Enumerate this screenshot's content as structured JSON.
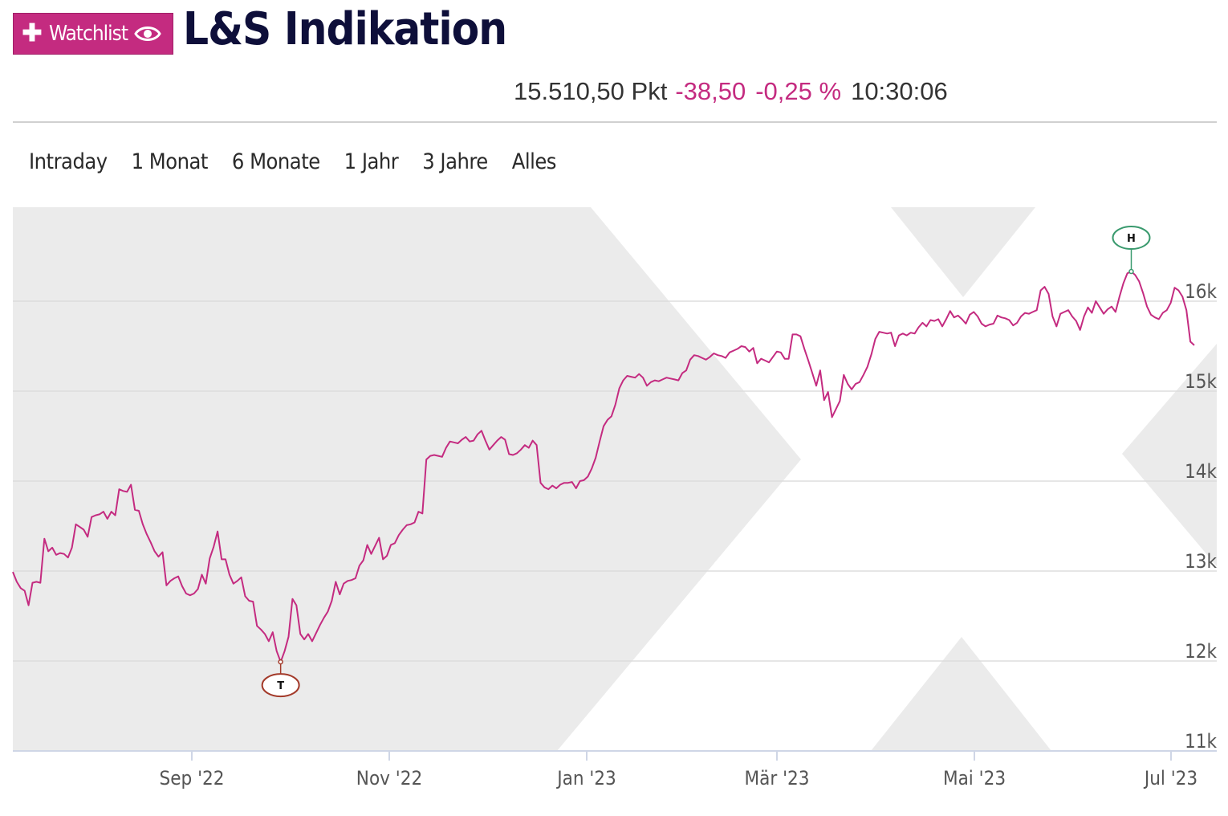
{
  "header": {
    "watchlist_label": "Watchlist",
    "title": "L&S Indikation"
  },
  "quote": {
    "value": "15.510,50 Pkt",
    "change": "-38,50",
    "change_pct": "-0,25 %",
    "time": "10:30:06"
  },
  "tabs": [
    "Intraday",
    "1 Monat",
    "6 Monate",
    "1 Jahr",
    "3 Jahre",
    "Alles"
  ],
  "colors": {
    "accent": "#c42b80",
    "title": "#0e0f3a",
    "high_marker": "#3a9a6e",
    "low_marker": "#a33a2a",
    "background_shape": "#ebebeb",
    "grid": "#dddddd"
  },
  "icons": [
    "plus-icon",
    "eye-icon"
  ],
  "chart_data": {
    "type": "line",
    "x_tick_labels": [
      "Sep '22",
      "Nov '22",
      "Jan '23",
      "Mär '23",
      "Mai '23",
      "Jul '23"
    ],
    "y_tick_labels": [
      "11k",
      "12k",
      "13k",
      "14k",
      "15k",
      "16k"
    ],
    "ylim": [
      11000,
      17000
    ],
    "grid": true,
    "markers": [
      {
        "label": "H",
        "value": 16330
      },
      {
        "label": "T",
        "value": 11980
      }
    ],
    "series": [
      {
        "values": [
          12990,
          12880,
          12810,
          12780,
          12620,
          12870,
          12880,
          12870,
          13360,
          13220,
          13260,
          13180,
          13200,
          13190,
          13150,
          13260,
          13520,
          13490,
          13460,
          13380,
          13600,
          13620,
          13630,
          13660,
          13580,
          13660,
          13620,
          13910,
          13890,
          13880,
          13960,
          13680,
          13670,
          13520,
          13410,
          13320,
          13220,
          13160,
          13210,
          12840,
          12890,
          12920,
          12940,
          12830,
          12750,
          12730,
          12750,
          12800,
          12960,
          12860,
          13140,
          13270,
          13440,
          13130,
          13130,
          12960,
          12860,
          12890,
          12930,
          12720,
          12670,
          12660,
          12390,
          12350,
          12300,
          12220,
          12320,
          12110,
          11990,
          12110,
          12270,
          12690,
          12620,
          12300,
          12240,
          12300,
          12220,
          12310,
          12400,
          12480,
          12550,
          12670,
          12880,
          12740,
          12860,
          12890,
          12900,
          12920,
          13060,
          13120,
          13290,
          13190,
          13280,
          13370,
          13130,
          13170,
          13290,
          13310,
          13400,
          13460,
          13510,
          13520,
          13540,
          13660,
          13640,
          14240,
          14280,
          14290,
          14280,
          14270,
          14370,
          14440,
          14430,
          14420,
          14460,
          14490,
          14440,
          14450,
          14520,
          14560,
          14450,
          14350,
          14400,
          14450,
          14490,
          14460,
          14300,
          14290,
          14310,
          14350,
          14400,
          14370,
          14450,
          14400,
          13980,
          13930,
          13910,
          13950,
          13920,
          13960,
          13980,
          13980,
          13990,
          13920,
          14000,
          14010,
          14050,
          14140,
          14260,
          14440,
          14610,
          14680,
          14720,
          14850,
          15030,
          15120,
          15170,
          15160,
          15150,
          15190,
          15150,
          15060,
          15100,
          15120,
          15110,
          15130,
          15150,
          15140,
          15130,
          15120,
          15200,
          15230,
          15350,
          15400,
          15390,
          15370,
          15350,
          15380,
          15420,
          15400,
          15390,
          15370,
          15430,
          15450,
          15470,
          15500,
          15490,
          15440,
          15480,
          15310,
          15360,
          15340,
          15320,
          15380,
          15440,
          15430,
          15360,
          15360,
          15630,
          15630,
          15610,
          15470,
          15340,
          15200,
          15060,
          15230,
          14900,
          14990,
          14710,
          14800,
          14890,
          15180,
          15080,
          15020,
          15080,
          15100,
          15180,
          15270,
          15410,
          15580,
          15660,
          15650,
          15640,
          15650,
          15500,
          15620,
          15640,
          15620,
          15650,
          15640,
          15710,
          15760,
          15720,
          15790,
          15780,
          15800,
          15720,
          15800,
          15890,
          15820,
          15840,
          15800,
          15750,
          15850,
          15880,
          15830,
          15750,
          15720,
          15740,
          15750,
          15840,
          15820,
          15810,
          15790,
          15730,
          15760,
          15830,
          15870,
          15860,
          15880,
          15900,
          16120,
          16160,
          16080,
          15830,
          15720,
          15860,
          15880,
          15900,
          15830,
          15780,
          15680,
          15830,
          15930,
          15870,
          16000,
          15930,
          15860,
          15910,
          15940,
          15880,
          16050,
          16200,
          16310,
          16330,
          16290,
          16220,
          16090,
          15940,
          15850,
          15820,
          15800,
          15870,
          15900,
          15980,
          16150,
          16120,
          16050,
          15900,
          15550,
          15510
        ]
      }
    ]
  }
}
